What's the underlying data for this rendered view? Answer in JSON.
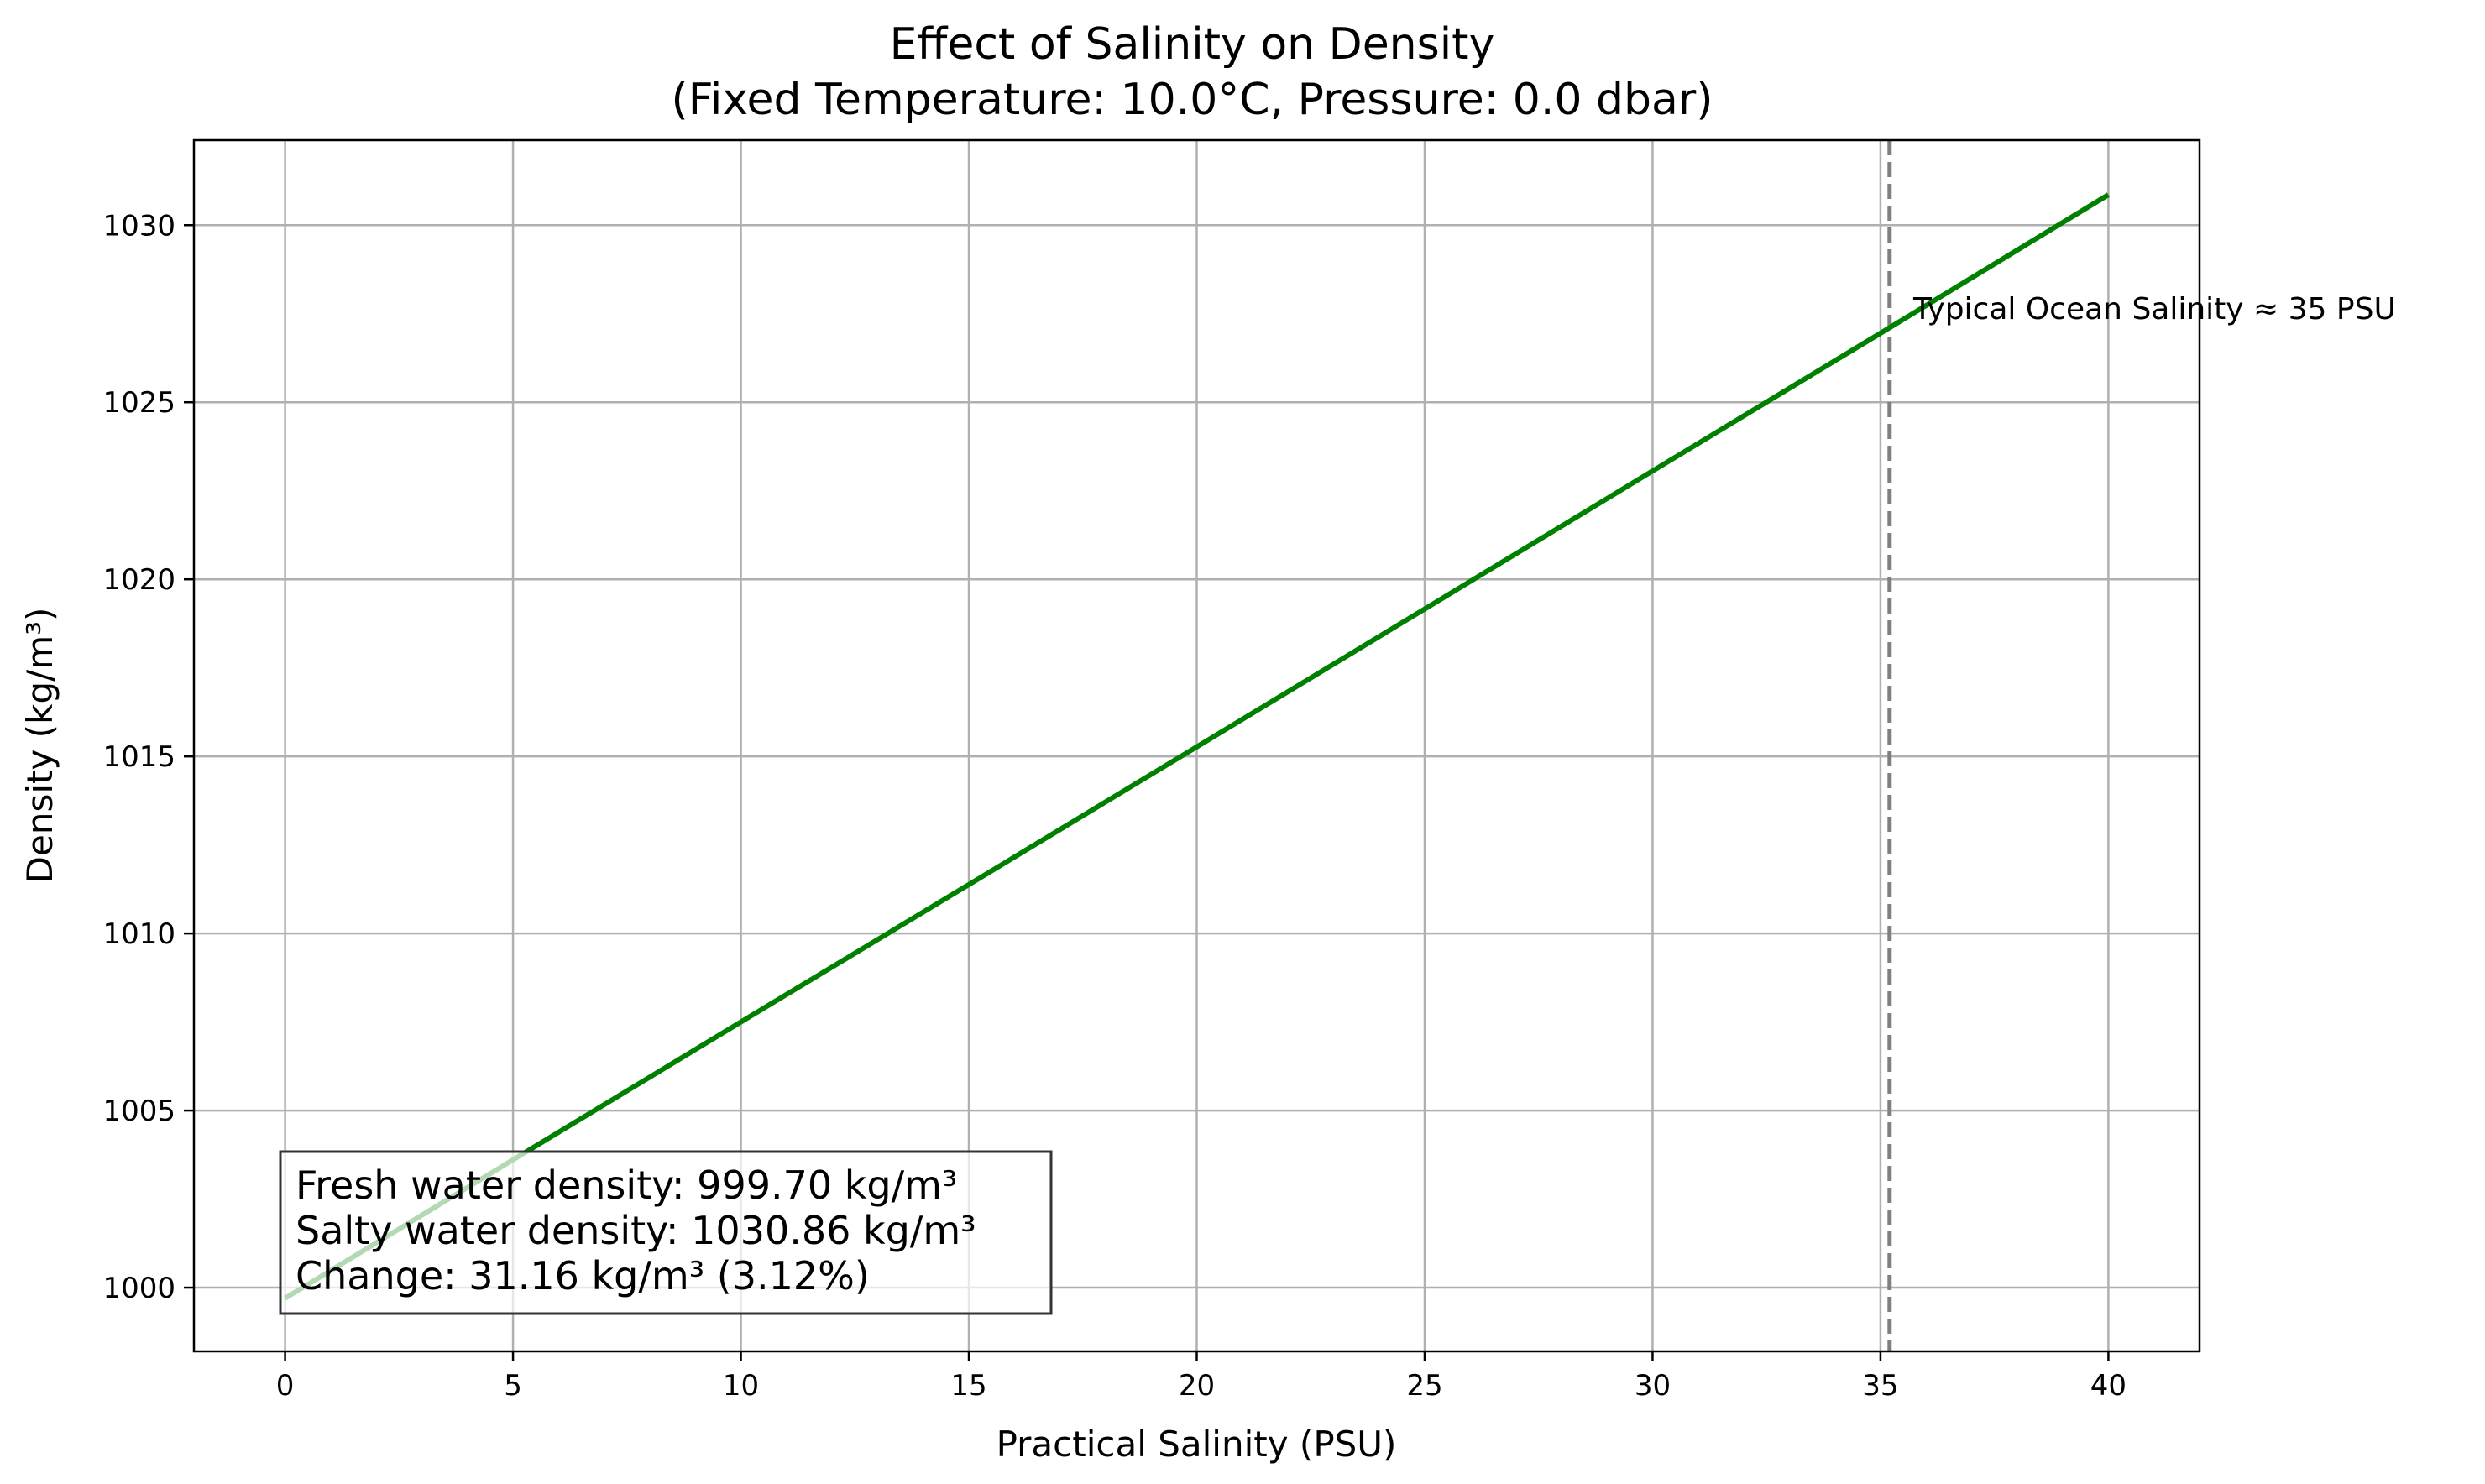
{
  "chart_data": {
    "type": "line",
    "title_line1": "Effect of Salinity on Density",
    "title_line2": "(Fixed Temperature: 10.0°C, Pressure: 0.0 dbar)",
    "xlabel": "Practical Salinity (PSU)",
    "ylabel": "Density (kg/m³)",
    "xlim": [
      -2,
      42
    ],
    "ylim": [
      998.2,
      1032.4
    ],
    "xticks": [
      0,
      5,
      10,
      15,
      20,
      25,
      30,
      35,
      40
    ],
    "yticks": [
      1000,
      1005,
      1010,
      1015,
      1020,
      1025,
      1030
    ],
    "grid": true,
    "series": [
      {
        "color": "#008000",
        "x": [
          0,
          5,
          10,
          15,
          20,
          25,
          30,
          35,
          40
        ],
        "y": [
          999.7,
          1003.61,
          1007.5,
          1011.38,
          1015.27,
          1019.16,
          1023.06,
          1026.95,
          1030.86
        ]
      }
    ],
    "reference_line": {
      "x": 35.2,
      "color": "#808080",
      "style": "dashed"
    },
    "annotation": {
      "text": "Typical Ocean Salinity ≈ 35 PSU",
      "x": 35.5,
      "y": 1027.3
    },
    "info_box": {
      "lines": [
        "Fresh water density: 999.70 kg/m³",
        "Salty water density: 1030.86 kg/m³",
        "Change: 31.16 kg/m³ (3.12%)"
      ]
    }
  }
}
